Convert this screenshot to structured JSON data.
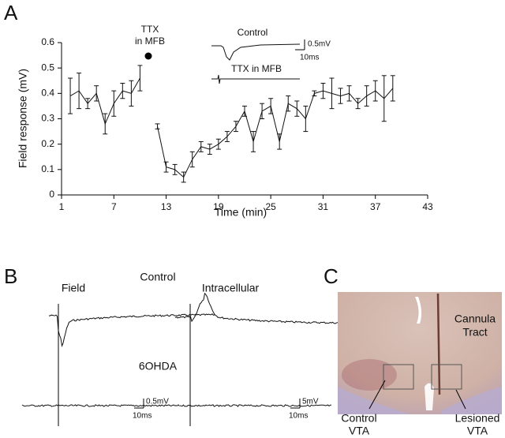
{
  "chart_data": {
    "type": "line",
    "panel": "A",
    "x_label": "Time (min)",
    "y_label": "Field response (mV)",
    "xlim": [
      1,
      43
    ],
    "xticks": [
      1,
      7,
      13,
      19,
      25,
      31,
      37,
      43
    ],
    "ylim": [
      0,
      0.6
    ],
    "yticks": [
      0,
      0.1,
      0.2,
      0.3,
      0.4,
      0.5,
      0.6
    ],
    "annotation": [
      "TTX",
      "in MFB"
    ],
    "inset_labels": [
      "Control",
      "0.5mV",
      "10ms",
      "TTX in MFB"
    ],
    "x": [
      2,
      3,
      4,
      5,
      6,
      7,
      8,
      9,
      10,
      11,
      12,
      13,
      14,
      15,
      16,
      17,
      18,
      19,
      20,
      21,
      22,
      23,
      24,
      25,
      26,
      27,
      28,
      29,
      30,
      31,
      32,
      33,
      34,
      35,
      36,
      37,
      38,
      39
    ],
    "series": [
      {
        "color": "#111111",
        "values": [
          0.39,
          0.41,
          0.36,
          0.4,
          0.28,
          0.36,
          0.41,
          0.4,
          0.46,
          null,
          0.27,
          0.11,
          0.1,
          0.07,
          0.14,
          0.19,
          0.18,
          0.2,
          0.23,
          0.27,
          0.33,
          0.21,
          0.33,
          0.35,
          0.21,
          0.36,
          0.34,
          0.3,
          0.4,
          0.41,
          0.4,
          0.39,
          0.4,
          0.36,
          0.39,
          0.41,
          0.38,
          0.42
        ],
        "errors": [
          0.07,
          0.07,
          0.02,
          0.03,
          0.04,
          0.05,
          0.03,
          0.05,
          0.05,
          null,
          0.01,
          0.02,
          0.02,
          0.02,
          0.03,
          0.02,
          0.02,
          0.02,
          0.02,
          0.02,
          0.02,
          0.04,
          0.03,
          0.03,
          0.03,
          0.03,
          0.03,
          0.05,
          0.01,
          0.03,
          0.06,
          0.03,
          0.03,
          0.02,
          0.04,
          0.04,
          0.09,
          0.05
        ]
      }
    ]
  },
  "panel_b": {
    "panel": "B",
    "labels": [
      "Field",
      "Control",
      "Intracellular",
      "6OHDA"
    ],
    "scale_left": [
      "0.5mV",
      "10ms"
    ],
    "scale_right": [
      "5mV",
      "10ms"
    ]
  },
  "panel_c": {
    "panel": "C",
    "labels": [
      [
        "Cannula",
        "Tract"
      ],
      [
        "Control",
        "VTA"
      ],
      [
        "Lesioned",
        "VTA"
      ]
    ]
  }
}
